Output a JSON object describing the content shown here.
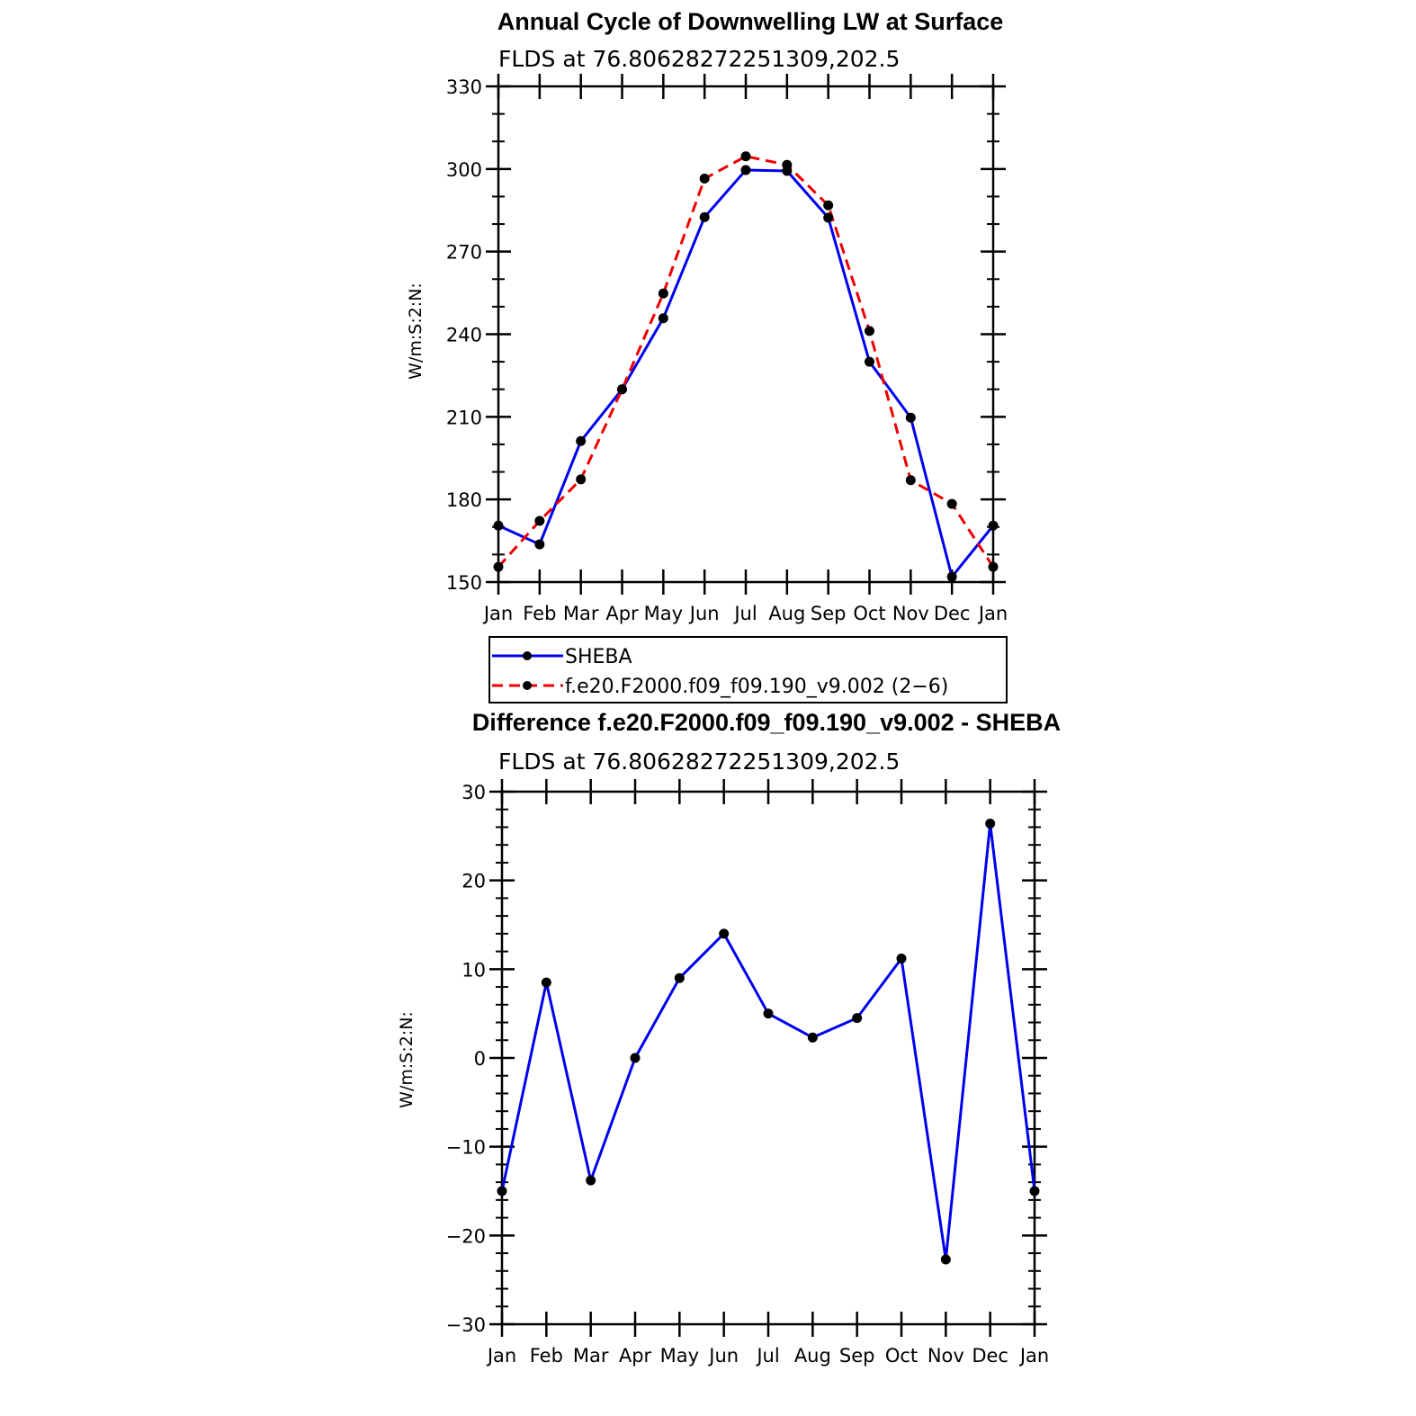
{
  "months": [
    "Jan",
    "Feb",
    "Mar",
    "Apr",
    "May",
    "Jun",
    "Jul",
    "Aug",
    "Sep",
    "Oct",
    "Nov",
    "Dec",
    "Jan"
  ],
  "colors": {
    "sheba": "#0000ee",
    "model": "#ee0000",
    "marker": "#000000"
  },
  "chart_data": [
    {
      "type": "line",
      "title": "Annual Cycle of Downwelling LW at Surface",
      "subtitle": "FLDS at 76.80628272251309,202.5",
      "ylabel": "W/m:S:2:N:",
      "xlabel": "",
      "ylim": [
        150,
        330
      ],
      "yticks": [
        150,
        180,
        210,
        240,
        270,
        300,
        330
      ],
      "categories": [
        "Jan",
        "Feb",
        "Mar",
        "Apr",
        "May",
        "Jun",
        "Jul",
        "Aug",
        "Sep",
        "Oct",
        "Nov",
        "Dec",
        "Jan"
      ],
      "grid": false,
      "legend_position": "below",
      "series": [
        {
          "name": "SHEBA",
          "style": "solid",
          "values": [
            170.5,
            163.7,
            201.2,
            220.0,
            245.8,
            282.5,
            299.6,
            299.3,
            282.3,
            230.0,
            209.7,
            151.9,
            170.5
          ]
        },
        {
          "name": "f.e20.F2000.f09_f09.190_v9.002 (2−6)",
          "style": "dashed",
          "values": [
            155.5,
            172.2,
            187.3,
            220.0,
            254.8,
            296.5,
            304.6,
            301.5,
            286.8,
            241.2,
            187.0,
            178.4,
            155.5
          ]
        }
      ]
    },
    {
      "type": "line",
      "title": "Difference f.e20.F2000.f09_f09.190_v9.002 - SHEBA",
      "subtitle": "FLDS at 76.80628272251309,202.5",
      "ylabel": "W/m:S:2:N:",
      "xlabel": "",
      "ylim": [
        -30,
        30
      ],
      "yticks": [
        -30,
        -20,
        -10,
        0,
        10,
        20,
        30
      ],
      "ytick_labels": [
        "−30",
        "−20",
        "−10",
        "0",
        "10",
        "20",
        "30"
      ],
      "categories": [
        "Jan",
        "Feb",
        "Mar",
        "Apr",
        "May",
        "Jun",
        "Jul",
        "Aug",
        "Sep",
        "Oct",
        "Nov",
        "Dec",
        "Jan"
      ],
      "grid": false,
      "series": [
        {
          "name": "",
          "style": "solid",
          "values": [
            -15.0,
            8.5,
            -13.8,
            0.0,
            9.0,
            14.0,
            5.0,
            2.3,
            4.5,
            11.2,
            -22.7,
            26.4,
            -15.0
          ]
        }
      ]
    }
  ]
}
